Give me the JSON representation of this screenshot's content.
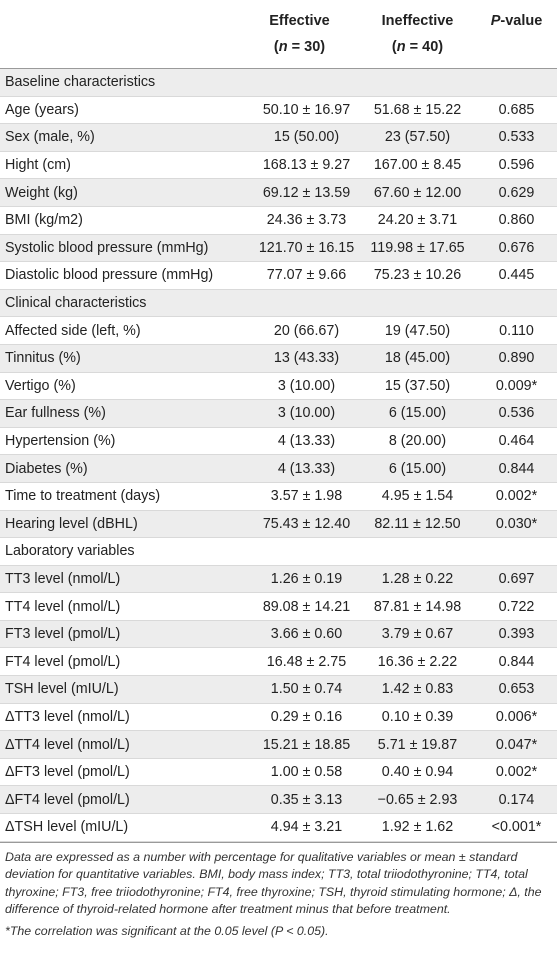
{
  "header": {
    "col_effective_1": "Effective",
    "col_effective_2_pre": "(",
    "col_effective_2_n": "n",
    "col_effective_2_post": " = 30)",
    "col_ineffective_1": "Ineffective",
    "col_ineffective_2_pre": "(",
    "col_ineffective_2_n": "n",
    "col_ineffective_2_post": " = 40)",
    "col_p_ital": "P",
    "col_p_rest": "-value"
  },
  "rows": [
    {
      "type": "section",
      "label": "Baseline characteristics"
    },
    {
      "type": "data",
      "label": "Age (years)",
      "effective": "50.10 ± 16.97",
      "ineffective": "51.68 ± 15.22",
      "p": "0.685"
    },
    {
      "type": "data",
      "label": "Sex (male, %)",
      "effective": "15 (50.00)",
      "ineffective": "23 (57.50)",
      "p": "0.533"
    },
    {
      "type": "data",
      "label": "Hight (cm)",
      "effective": "168.13 ± 9.27",
      "ineffective": "167.00 ± 8.45",
      "p": "0.596"
    },
    {
      "type": "data",
      "label": "Weight (kg)",
      "effective": "69.12 ± 13.59",
      "ineffective": "67.60 ± 12.00",
      "p": "0.629"
    },
    {
      "type": "data",
      "label": "BMI (kg/m2)",
      "effective": "24.36 ± 3.73",
      "ineffective": "24.20 ± 3.71",
      "p": "0.860"
    },
    {
      "type": "data",
      "label": "Systolic blood pressure (mmHg)",
      "effective": "121.70 ± 16.15",
      "ineffective": "119.98 ± 17.65",
      "p": "0.676"
    },
    {
      "type": "data",
      "label": "Diastolic blood pressure (mmHg)",
      "effective": "77.07 ± 9.66",
      "ineffective": "75.23 ± 10.26",
      "p": "0.445"
    },
    {
      "type": "section",
      "label": "Clinical characteristics"
    },
    {
      "type": "data",
      "label": "Affected side (left, %)",
      "effective": "20 (66.67)",
      "ineffective": "19 (47.50)",
      "p": "0.110"
    },
    {
      "type": "data",
      "label": "Tinnitus (%)",
      "effective": "13 (43.33)",
      "ineffective": "18 (45.00)",
      "p": "0.890"
    },
    {
      "type": "data",
      "label": "Vertigo (%)",
      "effective": "3 (10.00)",
      "ineffective": "15 (37.50)",
      "p": "0.009*"
    },
    {
      "type": "data",
      "label": "Ear fullness (%)",
      "effective": "3 (10.00)",
      "ineffective": "6 (15.00)",
      "p": "0.536"
    },
    {
      "type": "data",
      "label": "Hypertension (%)",
      "effective": "4 (13.33)",
      "ineffective": "8 (20.00)",
      "p": "0.464"
    },
    {
      "type": "data",
      "label": "Diabetes (%)",
      "effective": "4 (13.33)",
      "ineffective": "6 (15.00)",
      "p": "0.844"
    },
    {
      "type": "data",
      "label": "Time to treatment (days)",
      "effective": "3.57 ± 1.98",
      "ineffective": "4.95 ± 1.54",
      "p": "0.002*"
    },
    {
      "type": "data",
      "label": "Hearing level (dBHL)",
      "effective": "75.43 ± 12.40",
      "ineffective": "82.11 ± 12.50",
      "p": "0.030*"
    },
    {
      "type": "section",
      "label": "Laboratory variables"
    },
    {
      "type": "data",
      "label": "TT3 level (nmol/L)",
      "effective": "1.26 ± 0.19",
      "ineffective": "1.28 ± 0.22",
      "p": "0.697"
    },
    {
      "type": "data",
      "label": "TT4 level (nmol/L)",
      "effective": "89.08 ± 14.21",
      "ineffective": "87.81 ± 14.98",
      "p": "0.722"
    },
    {
      "type": "data",
      "label": "FT3 level (pmol/L)",
      "effective": "3.66 ± 0.60",
      "ineffective": "3.79 ± 0.67",
      "p": "0.393"
    },
    {
      "type": "data",
      "label": "FT4 level (pmol/L)",
      "effective": "16.48 ± 2.75",
      "ineffective": "16.36 ± 2.22",
      "p": "0.844"
    },
    {
      "type": "data",
      "label": "TSH level (mIU/L)",
      "effective": "1.50 ± 0.74",
      "ineffective": "1.42 ± 0.83",
      "p": "0.653"
    },
    {
      "type": "data",
      "label": "ΔTT3 level (nmol/L)",
      "effective": "0.29 ± 0.16",
      "ineffective": "0.10 ± 0.39",
      "p": "0.006*"
    },
    {
      "type": "data",
      "label": "ΔTT4 level (nmol/L)",
      "effective": "15.21 ± 18.85",
      "ineffective": "5.71 ± 19.87",
      "p": "0.047*"
    },
    {
      "type": "data",
      "label": "ΔFT3 level (pmol/L)",
      "effective": "1.00 ± 0.58",
      "ineffective": "0.40 ± 0.94",
      "p": "0.002*"
    },
    {
      "type": "data",
      "label": "ΔFT4 level (pmol/L)",
      "effective": "0.35 ± 3.13",
      "ineffective": "−0.65 ± 2.93",
      "p": "0.174"
    },
    {
      "type": "data",
      "label": "ΔTSH level (mIU/L)",
      "effective": "4.94 ± 3.21",
      "ineffective": "1.92 ± 1.62",
      "p": "<0.001*"
    }
  ],
  "footnotes": {
    "main": "Data are expressed as a number with percentage for qualitative variables or mean ± standard deviation for quantitative variables. BMI, body mass index; TT3, total triiodothyronine; TT4, total thyroxine; FT3, free triiodothyronine; FT4, free thyroxine; TSH, thyroid stimulating hormone; Δ, the difference of thyroid-related hormone after treatment minus that before treatment.",
    "significance": "*The correlation was significant at the 0.05 level (P < 0.05)."
  }
}
